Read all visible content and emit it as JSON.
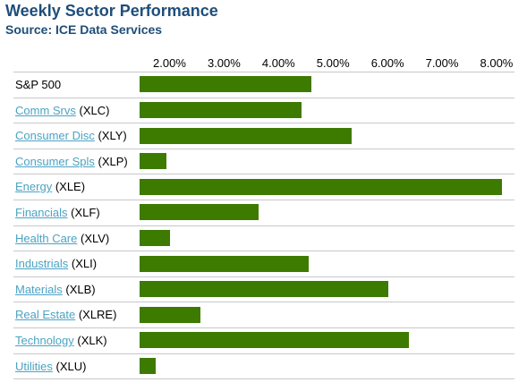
{
  "header": {
    "title": "Weekly Sector Performance",
    "subtitle": "Source: ICE Data Services"
  },
  "colors": {
    "title": "#1f4e79",
    "bar": "#3d7a00",
    "link": "#4ba3c3",
    "rule": "#c8c8c8"
  },
  "chart_data": {
    "type": "bar",
    "orientation": "horizontal",
    "title": "Weekly Sector Performance",
    "subtitle": "Source: ICE Data Services",
    "x_ticks": [
      "2.00%",
      "3.00%",
      "4.00%",
      "5.00%",
      "6.00%",
      "7.00%",
      "8.00%"
    ],
    "x_tick_values": [
      2,
      3,
      4,
      5,
      6,
      7,
      8
    ],
    "xlim": [
      1.45,
      8.28
    ],
    "categories": [
      {
        "name": "S&P 500",
        "ticker": "",
        "link": false
      },
      {
        "name": "Comm Srvs",
        "ticker": "(XLC)",
        "link": true
      },
      {
        "name": "Consumer Disc",
        "ticker": "(XLY)",
        "link": true
      },
      {
        "name": "Consumer Spls",
        "ticker": "(XLP)",
        "link": true
      },
      {
        "name": "Energy",
        "ticker": "(XLE)",
        "link": true
      },
      {
        "name": "Financials",
        "ticker": "(XLF)",
        "link": true
      },
      {
        "name": "Health Care",
        "ticker": "(XLV)",
        "link": true
      },
      {
        "name": "Industrials",
        "ticker": "(XLI)",
        "link": true
      },
      {
        "name": "Materials",
        "ticker": "(XLB)",
        "link": true
      },
      {
        "name": "Real Estate",
        "ticker": "(XLRE)",
        "link": true
      },
      {
        "name": "Technology",
        "ticker": "(XLK)",
        "link": true
      },
      {
        "name": "Utilities",
        "ticker": "(XLU)",
        "link": true
      }
    ],
    "values": [
      4.61,
      4.42,
      5.34,
      1.94,
      8.1,
      3.64,
      2.01,
      4.55,
      6.02,
      2.56,
      6.4,
      1.75
    ],
    "grid": false,
    "legend": "none"
  }
}
